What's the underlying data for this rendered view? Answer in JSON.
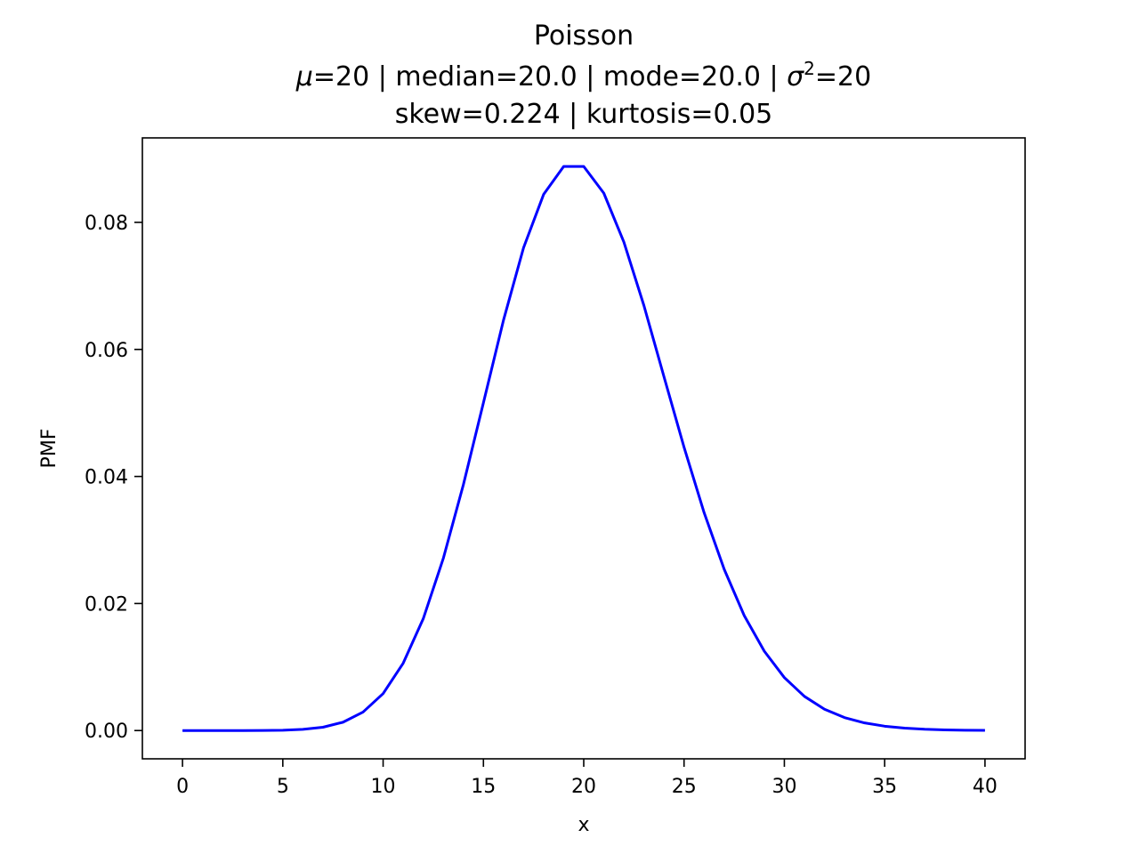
{
  "chart_data": {
    "type": "line",
    "title": "Poisson",
    "subtitle_parts": {
      "mu_symbol": "μ",
      "mu_text": "=20 | median=20.0 | mode=20.0 | ",
      "sigma_symbol": "σ",
      "sigma_exp": "2",
      "sigma_text": "=20"
    },
    "subtitle2": "skew=0.224 | kurtosis=0.05",
    "xlabel": "x",
    "ylabel": "PMF",
    "xlim": [
      -2,
      42
    ],
    "ylim": [
      -0.00445,
      0.0933
    ],
    "xticks": [
      0,
      5,
      10,
      15,
      20,
      25,
      30,
      35,
      40
    ],
    "yticks": [
      0.0,
      0.02,
      0.04,
      0.06,
      0.08
    ],
    "ytick_labels": [
      "0.00",
      "0.02",
      "0.04",
      "0.06",
      "0.08"
    ],
    "grid": false,
    "line_color": "#0000ff",
    "series": [
      {
        "x": [
          0,
          1,
          2,
          3,
          4,
          5,
          6,
          7,
          8,
          9,
          10,
          11,
          12,
          13,
          14,
          15,
          16,
          17,
          18,
          19,
          20,
          21,
          22,
          23,
          24,
          25,
          26,
          27,
          28,
          29,
          30,
          31,
          32,
          33,
          34,
          35,
          36,
          37,
          38,
          39,
          40
        ],
        "values": [
          2.1e-09,
          4.12e-08,
          4.12e-07,
          2.75e-06,
          1.37e-05,
          5.5e-05,
          0.000183,
          0.000523,
          0.00131,
          0.00291,
          0.00582,
          0.0106,
          0.0176,
          0.0271,
          0.0387,
          0.0516,
          0.0646,
          0.076,
          0.0844,
          0.0888,
          0.0888,
          0.0846,
          0.0769,
          0.0669,
          0.0557,
          0.0446,
          0.0343,
          0.0254,
          0.0181,
          0.0125,
          0.00834,
          0.00538,
          0.00336,
          0.00204,
          0.0012,
          0.000686,
          0.000381,
          0.000206,
          0.000108,
          5.55e-05,
          2.77e-05
        ]
      }
    ]
  }
}
